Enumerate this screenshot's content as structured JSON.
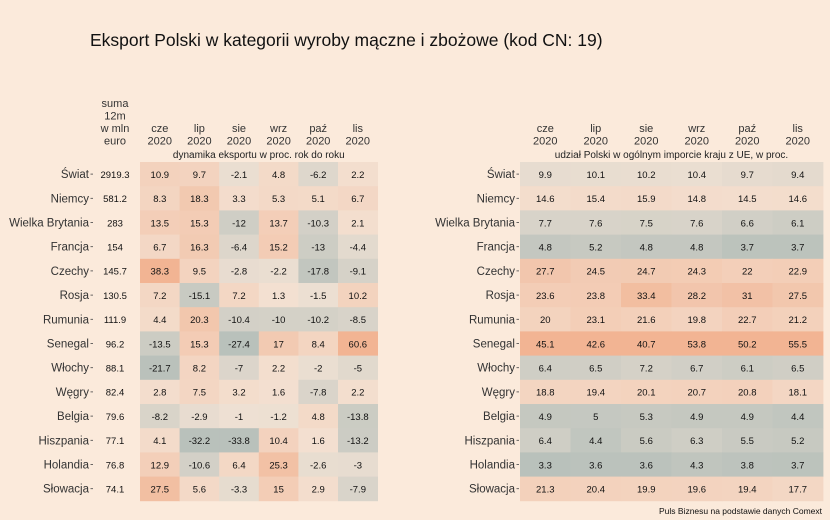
{
  "title": "Eksport Polski w kategorii wyroby mączne i zbożowe (kod CN: 19)",
  "source": "Puls Biznesu na podstawie danych Comext",
  "colors": {
    "background": "#fbeadb",
    "negative": "#b9c1bb",
    "neutral": "#f3e3d5",
    "positive": "#f2b493"
  },
  "chart_data": [
    {
      "type": "heatmap",
      "title": "dynamika eksportu w proc. rok do roku",
      "total_column_label": "suma 12m w mln euro",
      "months": [
        "cze 2020",
        "lip 2020",
        "sie 2020",
        "wrz 2020",
        "paź 2020",
        "lis 2020"
      ],
      "countries": [
        "Świat",
        "Niemcy",
        "Wielka Brytania",
        "Francja",
        "Czechy",
        "Rosja",
        "Rumunia",
        "Senegal",
        "Włochy",
        "Węgry",
        "Belgia",
        "Hiszpania",
        "Holandia",
        "Słowacja"
      ],
      "totals": [
        2919.3,
        581.2,
        283,
        154,
        145.7,
        130.5,
        111.9,
        96.2,
        88.1,
        82.4,
        79.6,
        77.1,
        76.8,
        74.1
      ],
      "values": [
        [
          10.9,
          9.7,
          -2.1,
          4.8,
          -6.2,
          2.2
        ],
        [
          8.3,
          18.3,
          3.3,
          5.3,
          5.1,
          6.7
        ],
        [
          13.5,
          15.3,
          -12,
          13.7,
          -10.3,
          2.1
        ],
        [
          6.7,
          16.3,
          -6.4,
          15.2,
          -13,
          -4.4
        ],
        [
          38.3,
          9.5,
          -2.8,
          -2.2,
          -17.8,
          -9.1
        ],
        [
          7.2,
          -15.1,
          7.2,
          1.3,
          -1.5,
          10.2
        ],
        [
          4.4,
          20.3,
          -10.4,
          -10,
          -10.2,
          -8.5
        ],
        [
          -13.5,
          15.3,
          -27.4,
          17,
          8.4,
          60.6
        ],
        [
          -21.7,
          8.2,
          -7,
          2.2,
          -2,
          -5
        ],
        [
          2.8,
          7.5,
          3.2,
          1.6,
          -7.8,
          2.2
        ],
        [
          -8.2,
          -2.9,
          -1,
          -1.2,
          4.8,
          -13.8
        ],
        [
          4.1,
          -32.2,
          -33.8,
          10.4,
          1.6,
          -13.2
        ],
        [
          12.9,
          -10.6,
          6.4,
          25.3,
          -2.6,
          -3
        ],
        [
          27.5,
          5.6,
          -3.3,
          15,
          2.9,
          -7.9
        ]
      ]
    },
    {
      "type": "heatmap",
      "title": "udział Polski w ogólnym imporcie kraju z UE, w proc.",
      "months": [
        "cze 2020",
        "lip 2020",
        "sie 2020",
        "wrz 2020",
        "paź 2020",
        "lis 2020"
      ],
      "countries": [
        "Świat",
        "Niemcy",
        "Wielka Brytania",
        "Francja",
        "Czechy",
        "Rosja",
        "Rumunia",
        "Senegal",
        "Włochy",
        "Węgry",
        "Belgia",
        "Hiszpania",
        "Holandia",
        "Słowacja"
      ],
      "values": [
        [
          9.9,
          10.1,
          10.2,
          10.4,
          9.7,
          9.4
        ],
        [
          14.6,
          15.4,
          15.9,
          14.8,
          14.5,
          14.6
        ],
        [
          7.7,
          7.6,
          7.5,
          7.6,
          6.6,
          6.1
        ],
        [
          4.8,
          5.2,
          4.8,
          4.8,
          3.7,
          3.7
        ],
        [
          27.7,
          24.5,
          24.7,
          24.3,
          22,
          22.9
        ],
        [
          23.6,
          23.8,
          33.4,
          28.2,
          31,
          27.5
        ],
        [
          20,
          23.1,
          21.6,
          19.8,
          22.7,
          21.2
        ],
        [
          45.1,
          42.6,
          40.7,
          53.8,
          50.2,
          55.5
        ],
        [
          6.4,
          6.5,
          7.2,
          6.7,
          6.1,
          6.5
        ],
        [
          18.8,
          19.4,
          20.1,
          20.7,
          20.8,
          18.1
        ],
        [
          4.9,
          5,
          5.3,
          4.9,
          4.9,
          4.4
        ],
        [
          6.4,
          4.4,
          5.6,
          6.3,
          5.5,
          5.2
        ],
        [
          3.3,
          3.6,
          3.6,
          4.3,
          3.8,
          3.7
        ],
        [
          21.3,
          20.4,
          19.9,
          19.6,
          19.4,
          17.7
        ]
      ]
    }
  ]
}
